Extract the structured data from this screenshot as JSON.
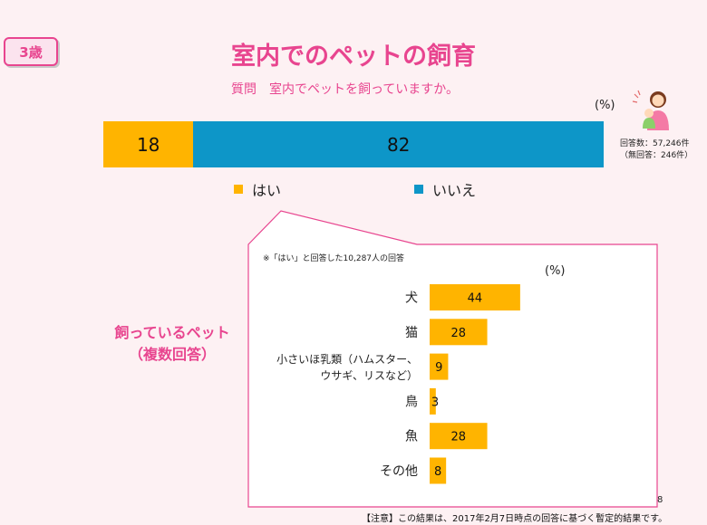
{
  "badge": "3歳",
  "title": "室内でのペットの飼育",
  "question": "質問　室内でペットを飼っていますか。",
  "percent_unit": "(%)",
  "respondents_line1": "回答数：57,246件",
  "respondents_line2": "（無回答：246件）",
  "main_chart": {
    "segments": [
      {
        "label": "はい",
        "value": 18,
        "color": "#ffb400"
      },
      {
        "label": "いいえ",
        "value": 82,
        "color": "#0d96c8"
      }
    ]
  },
  "sub_note": "※「はい」と回答した10,287人の回答",
  "pets_title_line1": "飼っているペット",
  "pets_title_line2": "（複数回答）",
  "chart_data": [
    {
      "type": "bar",
      "categories": [
        "はい",
        "いいえ"
      ],
      "values": [
        18,
        82
      ],
      "xlim": [
        0,
        100
      ]
    },
    {
      "type": "bar",
      "categories": [
        "犬",
        "猫",
        "小さいほ乳類（ハムスター、ウサギ、リスなど）",
        "鳥",
        "魚",
        "その他"
      ],
      "values": [
        44,
        28,
        9,
        3,
        28,
        8
      ],
      "xlim": [
        0,
        100
      ]
    }
  ],
  "pet_labels": [
    [
      "犬"
    ],
    [
      "猫"
    ],
    [
      "小さいほ乳類（ハムスター、",
      "ウサギ、リスなど）"
    ],
    [
      "鳥"
    ],
    [
      "魚"
    ],
    [
      "その他"
    ]
  ],
  "pet_bar_color": "#ffb400",
  "accent_color": "#e8458f",
  "page_number": "8",
  "footer": "【注意】この結果は、2017年2月7日時点の回答に基づく暫定的結果です。",
  "icons": [
    "mother-child-icon"
  ]
}
